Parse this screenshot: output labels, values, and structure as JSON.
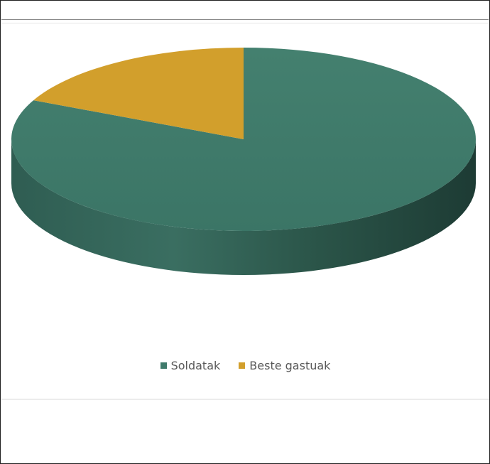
{
  "chart_data": {
    "type": "pie",
    "title": "",
    "categories": [
      "Soldatak",
      "Beste gastuak"
    ],
    "values": [
      82,
      18
    ],
    "colors": {
      "Soldatak": "#3f7a6b",
      "Beste gastuak": "#d29f2c"
    },
    "three_d": true,
    "legend_position": "bottom"
  },
  "legend": {
    "items": [
      {
        "label": "Soldatak",
        "color": "#3f7a6b"
      },
      {
        "label": "Beste gastuak",
        "color": "#d29f2c"
      }
    ]
  }
}
